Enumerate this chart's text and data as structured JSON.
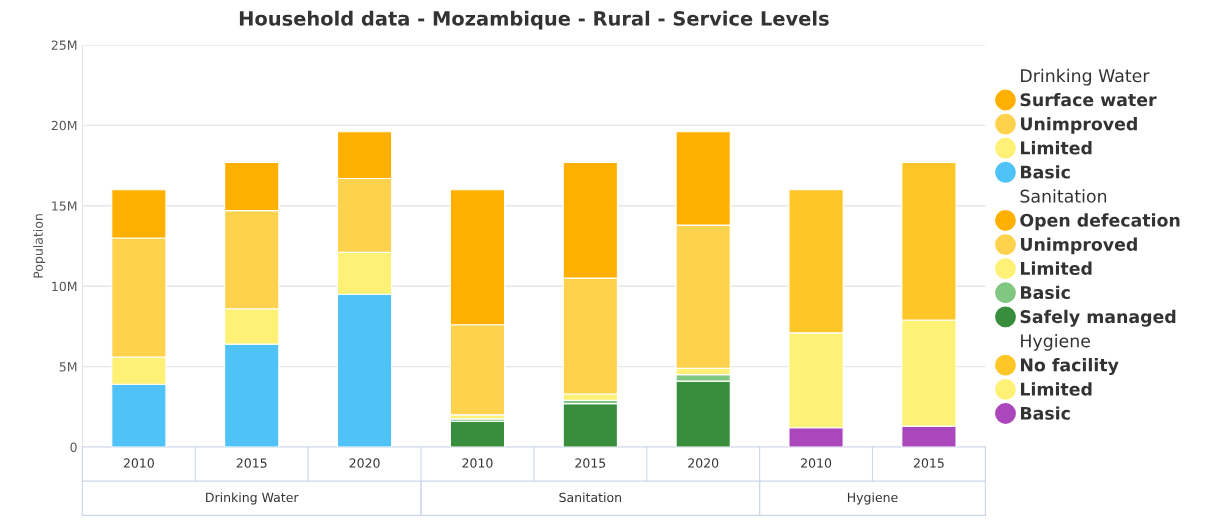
{
  "chart_data": {
    "type": "bar",
    "stacked": true,
    "title": "Household data - Mozambique - Rural - Service Levels",
    "ylabel": "Population",
    "categories": [
      "2010",
      "2015",
      "2020",
      "2010",
      "2015",
      "2020",
      "2010",
      "2015"
    ],
    "annotations": [
      "Drinking Water",
      "Sanitation",
      "Hygiene"
    ],
    "ylim": [
      0,
      25
    ],
    "yticks": [
      {
        "value": 0,
        "label": "0"
      },
      {
        "value": 5,
        "label": "5M"
      },
      {
        "value": 10,
        "label": "10M"
      },
      {
        "value": 15,
        "label": "15M"
      },
      {
        "value": 20,
        "label": "20M"
      },
      {
        "value": 25,
        "label": "25M"
      }
    ],
    "grid": "y",
    "legend": "right",
    "series": [
      {
        "name": "Basic",
        "color": "#4fc3f7",
        "values": [
          3.9,
          6.4,
          9.5,
          null,
          null,
          null,
          null,
          null
        ]
      },
      {
        "name": "Limited",
        "color": "#fff176",
        "values": [
          1.7,
          2.2,
          2.6,
          null,
          null,
          null,
          null,
          null
        ]
      },
      {
        "name": "Unimproved",
        "color": "#ffd24d",
        "values": [
          7.4,
          6.1,
          4.6,
          null,
          null,
          null,
          null,
          null
        ]
      },
      {
        "name": "Surface water",
        "color": "#ffb000",
        "values": [
          3.0,
          3.0,
          2.9,
          null,
          null,
          null,
          null,
          null
        ]
      },
      {
        "name": "Safely managed",
        "color": "#388e3c",
        "values": [
          null,
          null,
          null,
          1.6,
          2.7,
          4.1,
          null,
          null
        ]
      },
      {
        "name": "Basic",
        "color": "#81c784",
        "values": [
          null,
          null,
          null,
          0.15,
          0.2,
          0.4,
          null,
          null
        ]
      },
      {
        "name": "Limited",
        "color": "#fff176",
        "values": [
          null,
          null,
          null,
          0.25,
          0.4,
          0.4,
          null,
          null
        ]
      },
      {
        "name": "Unimproved",
        "color": "#ffd24d",
        "values": [
          null,
          null,
          null,
          5.6,
          7.2,
          8.9,
          null,
          null
        ]
      },
      {
        "name": "Open defecation",
        "color": "#ffb000",
        "values": [
          null,
          null,
          null,
          8.4,
          7.2,
          5.8,
          null,
          null
        ]
      },
      {
        "name": "Basic",
        "color": "#ab47bc",
        "values": [
          null,
          null,
          null,
          null,
          null,
          null,
          1.2,
          1.3
        ]
      },
      {
        "name": "Limited",
        "color": "#fff176",
        "values": [
          null,
          null,
          null,
          null,
          null,
          null,
          5.9,
          6.6
        ]
      },
      {
        "name": "No facility",
        "color": "#ffc627",
        "values": [
          null,
          null,
          null,
          null,
          null,
          null,
          8.9,
          9.8
        ]
      }
    ]
  }
}
